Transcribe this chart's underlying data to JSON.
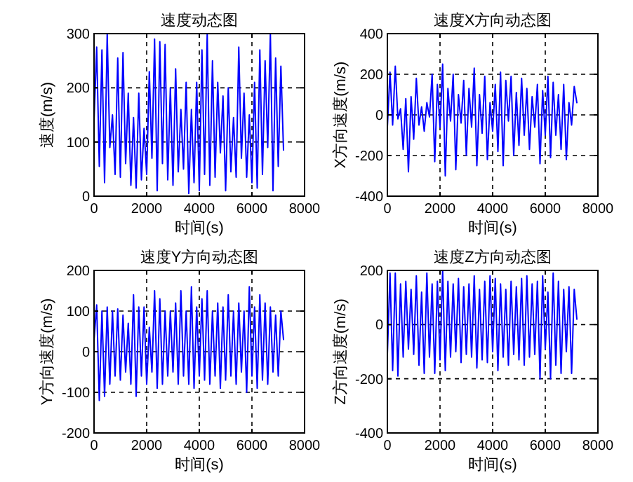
{
  "chart_data": [
    {
      "type": "line",
      "title": "速度动态图",
      "xlabel": "时间(s)",
      "ylabel": "速度(m/s)",
      "xlim": [
        0,
        8000
      ],
      "ylim": [
        0,
        300
      ],
      "xticks": [
        0,
        2000,
        4000,
        6000,
        8000
      ],
      "yticks": [
        0,
        100,
        200,
        300
      ],
      "grid": true,
      "x": [
        0,
        100,
        200,
        300,
        400,
        500,
        600,
        700,
        800,
        900,
        1000,
        1100,
        1200,
        1300,
        1400,
        1500,
        1600,
        1700,
        1800,
        1900,
        2000,
        2100,
        2200,
        2300,
        2400,
        2500,
        2600,
        2700,
        2800,
        2900,
        3000,
        3100,
        3200,
        3300,
        3400,
        3500,
        3600,
        3700,
        3800,
        3900,
        4000,
        4100,
        4200,
        4300,
        4400,
        4500,
        4600,
        4700,
        4800,
        4900,
        5000,
        5100,
        5200,
        5300,
        5400,
        5500,
        5600,
        5700,
        5800,
        5900,
        6000,
        6100,
        6200,
        6300,
        6400,
        6500,
        6600,
        6700,
        6800,
        6900,
        7000,
        7100,
        7200
      ],
      "series": [
        {
          "color": "#0000ff",
          "values": [
            140,
            275,
            55,
            270,
            25,
            300,
            90,
            150,
            40,
            255,
            35,
            265,
            60,
            190,
            20,
            145,
            15,
            190,
            30,
            125,
            40,
            230,
            70,
            290,
            10,
            285,
            60,
            280,
            30,
            200,
            20,
            235,
            45,
            160,
            50,
            210,
            5,
            160,
            25,
            210,
            10,
            270,
            40,
            300,
            20,
            250,
            35,
            210,
            80,
            185,
            10,
            200,
            45,
            145,
            35,
            275,
            70,
            190,
            35,
            150,
            25,
            210,
            15,
            270,
            40,
            250,
            90,
            300,
            10,
            255,
            55,
            240,
            85
          ]
        }
      ]
    },
    {
      "type": "line",
      "title": "速度X方向动态图",
      "xlabel": "时间(s)",
      "ylabel": "X方向速度(m/s)",
      "xlim": [
        0,
        8000
      ],
      "ylim": [
        -400,
        400
      ],
      "xticks": [
        0,
        2000,
        4000,
        6000,
        8000
      ],
      "yticks": [
        -400,
        -200,
        0,
        200,
        400
      ],
      "grid": true,
      "x": [
        0,
        100,
        200,
        300,
        400,
        500,
        600,
        700,
        800,
        900,
        1000,
        1100,
        1200,
        1300,
        1400,
        1500,
        1600,
        1700,
        1800,
        1900,
        2000,
        2100,
        2200,
        2300,
        2400,
        2500,
        2600,
        2700,
        2800,
        2900,
        3000,
        3100,
        3200,
        3300,
        3400,
        3500,
        3600,
        3700,
        3800,
        3900,
        4000,
        4100,
        4200,
        4300,
        4400,
        4500,
        4600,
        4700,
        4800,
        4900,
        5000,
        5100,
        5200,
        5300,
        5400,
        5500,
        5600,
        5700,
        5800,
        5900,
        6000,
        6100,
        6200,
        6300,
        6400,
        6500,
        6600,
        6700,
        6800,
        6900,
        7000,
        7100,
        7200
      ],
      "series": [
        {
          "color": "#0000ff",
          "values": [
            -60,
            210,
            -50,
            240,
            -20,
            30,
            -170,
            80,
            -280,
            90,
            -120,
            180,
            -50,
            40,
            -80,
            60,
            -10,
            200,
            -230,
            150,
            -60,
            250,
            -300,
            130,
            -30,
            200,
            -270,
            100,
            -40,
            170,
            -200,
            130,
            -60,
            230,
            -250,
            100,
            -90,
            190,
            -220,
            60,
            -80,
            150,
            -180,
            210,
            -250,
            170,
            -30,
            190,
            -200,
            110,
            -150,
            180,
            -100,
            130,
            -170,
            90,
            -60,
            150,
            -240,
            120,
            -100,
            190,
            -210,
            160,
            -100,
            100,
            -170,
            150,
            -220,
            60,
            -50,
            140,
            60
          ]
        }
      ]
    },
    {
      "type": "line",
      "title": "速度Y方向动态图",
      "xlabel": "时间(s)",
      "ylabel": "Y方向速度(m/s)",
      "xlim": [
        0,
        8000
      ],
      "ylim": [
        -200,
        200
      ],
      "xticks": [
        0,
        2000,
        4000,
        6000,
        8000
      ],
      "yticks": [
        -200,
        -100,
        0,
        100,
        200
      ],
      "grid": true,
      "x": [
        0,
        100,
        200,
        300,
        400,
        500,
        600,
        700,
        800,
        900,
        1000,
        1100,
        1200,
        1300,
        1400,
        1500,
        1600,
        1700,
        1800,
        1900,
        2000,
        2100,
        2200,
        2300,
        2400,
        2500,
        2600,
        2700,
        2800,
        2900,
        3000,
        3100,
        3200,
        3300,
        3400,
        3500,
        3600,
        3700,
        3800,
        3900,
        4000,
        4100,
        4200,
        4300,
        4400,
        4500,
        4600,
        4700,
        4800,
        4900,
        5000,
        5100,
        5200,
        5300,
        5400,
        5500,
        5600,
        5700,
        5800,
        5900,
        6000,
        6100,
        6200,
        6300,
        6400,
        6500,
        6600,
        6700,
        6800,
        6900,
        7000,
        7100,
        7200
      ],
      "series": [
        {
          "color": "#0000ff",
          "values": [
            30,
            115,
            -120,
            100,
            -110,
            110,
            -80,
            100,
            -60,
            105,
            -70,
            90,
            -50,
            70,
            -80,
            140,
            -110,
            110,
            -60,
            110,
            -80,
            60,
            -50,
            150,
            -90,
            130,
            -80,
            100,
            -60,
            100,
            -50,
            120,
            -80,
            150,
            -60,
            100,
            -80,
            160,
            -90,
            110,
            -60,
            130,
            -70,
            150,
            -80,
            100,
            -60,
            120,
            -90,
            110,
            -70,
            140,
            -60,
            100,
            -80,
            120,
            -50,
            100,
            -100,
            160,
            -60,
            110,
            -90,
            140,
            -70,
            120,
            -80,
            110,
            -50,
            90,
            -60,
            100,
            30
          ]
        }
      ]
    },
    {
      "type": "line",
      "title": "速度Z方向动态图",
      "xlabel": "时间(s)",
      "ylabel": "Z方向速度(m/s)",
      "xlim": [
        0,
        8000
      ],
      "ylim": [
        -400,
        200
      ],
      "xticks": [
        0,
        2000,
        4000,
        6000,
        8000
      ],
      "yticks": [
        -400,
        -200,
        0,
        200
      ],
      "grid": true,
      "x": [
        0,
        100,
        200,
        300,
        400,
        500,
        600,
        700,
        800,
        900,
        1000,
        1100,
        1200,
        1300,
        1400,
        1500,
        1600,
        1700,
        1800,
        1900,
        2000,
        2100,
        2200,
        2300,
        2400,
        2500,
        2600,
        2700,
        2800,
        2900,
        3000,
        3100,
        3200,
        3300,
        3400,
        3500,
        3600,
        3700,
        3800,
        3900,
        4000,
        4100,
        4200,
        4300,
        4400,
        4500,
        4600,
        4700,
        4800,
        4900,
        5000,
        5100,
        5200,
        5300,
        5400,
        5500,
        5600,
        5700,
        5800,
        5900,
        6000,
        6100,
        6200,
        6300,
        6400,
        6500,
        6600,
        6700,
        6800,
        6900,
        7000,
        7100,
        7200
      ],
      "series": [
        {
          "color": "#0000ff",
          "values": [
            -110,
            190,
            -170,
            190,
            -190,
            150,
            -120,
            160,
            -90,
            130,
            -110,
            180,
            -150,
            120,
            -180,
            190,
            -120,
            150,
            -180,
            160,
            -130,
            200,
            -170,
            160,
            -120,
            150,
            -100,
            170,
            -140,
            140,
            -110,
            150,
            -120,
            180,
            -160,
            130,
            -130,
            160,
            -140,
            180,
            -100,
            170,
            -170,
            150,
            -120,
            130,
            -150,
            160,
            -110,
            140,
            -130,
            170,
            -150,
            180,
            -120,
            150,
            -110,
            160,
            -200,
            180,
            -90,
            120,
            -200,
            190,
            -150,
            160,
            -180,
            130,
            -100,
            140,
            -180,
            130,
            20
          ]
        }
      ]
    }
  ]
}
